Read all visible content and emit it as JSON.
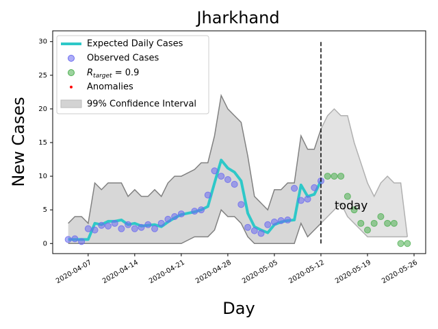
{
  "chart_data": {
    "type": "line",
    "title": "Jharkhand",
    "x_label": "Day",
    "y_label": "New Cases",
    "xlim": [
      "2020-04-01T16:00",
      "2020-05-27T18:00"
    ],
    "xticks": [
      "2020-04-07",
      "2020-04-14",
      "2020-04-21",
      "2020-04-28",
      "2020-05-05",
      "2020-05-12",
      "2020-05-19",
      "2020-05-26"
    ],
    "ylim": [
      -1.5,
      31.6
    ],
    "yticks": [
      0,
      5,
      10,
      15,
      20,
      25,
      30
    ],
    "grid": false,
    "legend": "upper left",
    "series": [
      {
        "name": "99% Confidence Interval",
        "kind": "band",
        "color": "#808080",
        "fill": "#d3d3d3",
        "x": [
          "2020-04-04",
          "2020-04-05",
          "2020-04-06",
          "2020-04-07",
          "2020-04-08",
          "2020-04-09",
          "2020-04-10",
          "2020-04-11",
          "2020-04-12",
          "2020-04-13",
          "2020-04-14",
          "2020-04-15",
          "2020-04-16",
          "2020-04-17",
          "2020-04-18",
          "2020-04-19",
          "2020-04-20",
          "2020-04-21",
          "2020-04-22",
          "2020-04-23",
          "2020-04-24",
          "2020-04-25",
          "2020-04-26",
          "2020-04-27",
          "2020-04-28",
          "2020-04-29",
          "2020-04-30",
          "2020-05-01",
          "2020-05-02",
          "2020-05-03",
          "2020-05-04",
          "2020-05-05",
          "2020-05-06",
          "2020-05-07",
          "2020-05-08",
          "2020-05-09",
          "2020-05-10",
          "2020-05-11",
          "2020-05-12"
        ],
        "upper": [
          3,
          4,
          4,
          3,
          9,
          8,
          9,
          9,
          9,
          7,
          8,
          7,
          7,
          8,
          7,
          9,
          10,
          10,
          10.5,
          11,
          12,
          12,
          16,
          22,
          20,
          19,
          18,
          13,
          7,
          6,
          5,
          8,
          8,
          9,
          9,
          16,
          14,
          14,
          17
        ],
        "lower": [
          0,
          0,
          0,
          0,
          0,
          0,
          0,
          0,
          0,
          0,
          0,
          0,
          0,
          0,
          0,
          0,
          0,
          0,
          0.5,
          1,
          1,
          1,
          2,
          5,
          4,
          4,
          3,
          1,
          0,
          0,
          0,
          0,
          0,
          0,
          0,
          3,
          1,
          2,
          3
        ]
      },
      {
        "kind": "band",
        "color": "#b0b0b0",
        "fill": "#d9d9d9",
        "x": [
          "2020-05-12",
          "2020-05-13",
          "2020-05-14",
          "2020-05-15",
          "2020-05-16",
          "2020-05-17",
          "2020-05-18",
          "2020-05-19",
          "2020-05-20",
          "2020-05-21",
          "2020-05-22",
          "2020-05-23",
          "2020-05-24",
          "2020-05-25"
        ],
        "upper": [
          17,
          19,
          20,
          19,
          19,
          15,
          12,
          9,
          7,
          9,
          10,
          9,
          9,
          1
        ],
        "lower": [
          3,
          4,
          5,
          6,
          4,
          3,
          2,
          1,
          1,
          1,
          1,
          1,
          1,
          1
        ]
      },
      {
        "name": "Expected Daily Cases",
        "kind": "line",
        "color": "#2ec8c8",
        "x": [
          "2020-04-04",
          "2020-04-05",
          "2020-04-06",
          "2020-04-07",
          "2020-04-08",
          "2020-04-09",
          "2020-04-10",
          "2020-04-11",
          "2020-04-12",
          "2020-04-13",
          "2020-04-14",
          "2020-04-15",
          "2020-04-16",
          "2020-04-17",
          "2020-04-18",
          "2020-04-19",
          "2020-04-20",
          "2020-04-21",
          "2020-04-22",
          "2020-04-23",
          "2020-04-24",
          "2020-04-25",
          "2020-04-26",
          "2020-04-27",
          "2020-04-28",
          "2020-04-29",
          "2020-04-30",
          "2020-05-01",
          "2020-05-02",
          "2020-05-03",
          "2020-05-04",
          "2020-05-05",
          "2020-05-06",
          "2020-05-07",
          "2020-05-08",
          "2020-05-09",
          "2020-05-10",
          "2020-05-11",
          "2020-05-12"
        ],
        "values": [
          0.6,
          0.6,
          0.6,
          0.6,
          3.0,
          2.8,
          3.3,
          3.3,
          3.5,
          2.8,
          3.0,
          2.6,
          2.7,
          2.8,
          2.5,
          3.2,
          3.8,
          4.3,
          4.5,
          4.7,
          5.0,
          5.5,
          9.0,
          12.4,
          11.2,
          10.6,
          9.3,
          4.5,
          2.5,
          2.0,
          1.6,
          2.8,
          3.2,
          3.4,
          3.5,
          8.7,
          7.0,
          7.3,
          9.3
        ]
      },
      {
        "name": "Observed Cases",
        "kind": "scatter",
        "color": "#6a6af0",
        "x": [
          "2020-04-04",
          "2020-04-05",
          "2020-04-06",
          "2020-04-07",
          "2020-04-08",
          "2020-04-09",
          "2020-04-10",
          "2020-04-11",
          "2020-04-12",
          "2020-04-13",
          "2020-04-14",
          "2020-04-15",
          "2020-04-16",
          "2020-04-17",
          "2020-04-18",
          "2020-04-19",
          "2020-04-20",
          "2020-04-21",
          "2020-04-23",
          "2020-04-24",
          "2020-04-25",
          "2020-04-26",
          "2020-04-27",
          "2020-04-28",
          "2020-04-29",
          "2020-04-30",
          "2020-05-01",
          "2020-05-02",
          "2020-05-03",
          "2020-05-04",
          "2020-05-05",
          "2020-05-06",
          "2020-05-07",
          "2020-05-08",
          "2020-05-09",
          "2020-05-10",
          "2020-05-11",
          "2020-05-12"
        ],
        "values": [
          0.6,
          0.7,
          0.3,
          2.2,
          2.0,
          2.7,
          2.6,
          3.0,
          2.2,
          2.8,
          2.2,
          2.4,
          2.8,
          2.2,
          3.0,
          3.6,
          4.0,
          4.4,
          4.8,
          5.0,
          7.2,
          10.8,
          10.0,
          9.5,
          8.8,
          5.8,
          2.4,
          1.9,
          1.5,
          2.8,
          3.2,
          3.4,
          3.5,
          8.2,
          6.4,
          6.6,
          8.3,
          9.3
        ]
      },
      {
        "name": "Anomalies",
        "kind": "dot",
        "color": "#ff0000",
        "x": [],
        "values": []
      },
      {
        "name": {
          "symbol": "R",
          "subscript": "target",
          "rest": " = 0.9"
        },
        "kind": "scatter",
        "color": "#4caf50",
        "x": [
          "2020-05-13",
          "2020-05-14",
          "2020-05-15",
          "2020-05-16",
          "2020-05-17",
          "2020-05-18",
          "2020-05-19",
          "2020-05-20",
          "2020-05-21",
          "2020-05-22",
          "2020-05-23",
          "2020-05-24",
          "2020-05-25"
        ],
        "values": [
          10,
          10,
          10,
          7,
          5,
          3,
          2,
          3,
          4,
          3,
          3,
          0,
          0
        ]
      }
    ],
    "vline": {
      "x": "2020-05-12",
      "y": [
        0,
        30
      ],
      "label": "today"
    }
  }
}
